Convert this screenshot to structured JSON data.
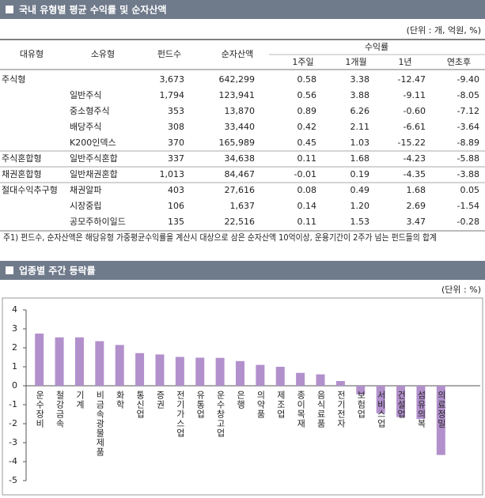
{
  "table": {
    "title": "국내 유형별 평균 수익률 및 순자산액",
    "unit": "(단위 : 개, 억원, %)",
    "columns": [
      "대유형",
      "소유형",
      "펀드수",
      "순자산액"
    ],
    "return_header": "수익률",
    "return_columns": [
      "1주일",
      "1개월",
      "1년",
      "연초후"
    ],
    "rows": [
      {
        "major": "주식형",
        "values": [
          "3,673",
          "642,299",
          "0.58",
          "3.38",
          "-12.47",
          "-9.40"
        ]
      },
      {
        "minor": "일반주식",
        "values": [
          "1,794",
          "123,941",
          "0.56",
          "3.88",
          "-9.11",
          "-8.05"
        ]
      },
      {
        "minor": "중소형주식",
        "values": [
          "353",
          "13,870",
          "0.89",
          "6.26",
          "-0.60",
          "-7.12"
        ]
      },
      {
        "minor": "배당주식",
        "values": [
          "308",
          "33,440",
          "0.42",
          "2.11",
          "-6.61",
          "-3.64"
        ]
      },
      {
        "minor": "K200인덱스",
        "values": [
          "370",
          "165,989",
          "0.45",
          "1.03",
          "-15.22",
          "-8.89"
        ]
      },
      {
        "major": "주식혼합형",
        "minor": "일반주식혼합",
        "values": [
          "337",
          "34,638",
          "0.11",
          "1.68",
          "-4.23",
          "-5.88"
        ]
      },
      {
        "major": "채권혼합형",
        "minor": "일반채권혼합",
        "values": [
          "1,013",
          "84,467",
          "-0.01",
          "0.19",
          "-4.35",
          "-3.88"
        ]
      },
      {
        "major": "절대수익추구형",
        "minor": "채권알파",
        "values": [
          "403",
          "27,616",
          "0.08",
          "0.49",
          "1.68",
          "0.05"
        ]
      },
      {
        "minor": "시장중립",
        "values": [
          "106",
          "1,637",
          "0.14",
          "1.20",
          "2.69",
          "-1.54"
        ]
      },
      {
        "minor": "공모주하이일드",
        "values": [
          "135",
          "22,516",
          "0.11",
          "1.53",
          "3.47",
          "-0.28"
        ]
      }
    ],
    "note": "주1) 펀드수, 순자산액은 해당유형 가중평균수익률을 계산시 대상으로 삼은 순자산액 10억이상, 운용기간이 2주가 넘는 펀드들의 합계"
  },
  "chart_data": {
    "type": "bar",
    "title": "업종별 주간 등락률",
    "unit": "(단위 : %)",
    "categories": [
      "운수장비",
      "철강금속",
      "기계",
      "비금속광물제품",
      "화학",
      "통신업",
      "증권",
      "전기가스업",
      "유통업",
      "운수창고업",
      "은행",
      "의약품",
      "제조업",
      "종이목재",
      "음식료품",
      "전기전자",
      "보험업",
      "서비스업",
      "건설업",
      "섬유의복",
      "의료정밀"
    ],
    "values": [
      2.75,
      2.55,
      2.55,
      2.35,
      2.15,
      1.72,
      1.65,
      1.52,
      1.48,
      1.47,
      1.3,
      1.1,
      1.0,
      0.68,
      0.6,
      0.25,
      -0.45,
      -1.45,
      -1.65,
      -1.75,
      -3.65
    ],
    "color": "#b290cc",
    "ylim": [
      -5,
      4
    ],
    "yticks": [
      -5,
      -4,
      -3,
      -2,
      -1,
      0,
      1,
      2,
      3,
      4
    ]
  }
}
